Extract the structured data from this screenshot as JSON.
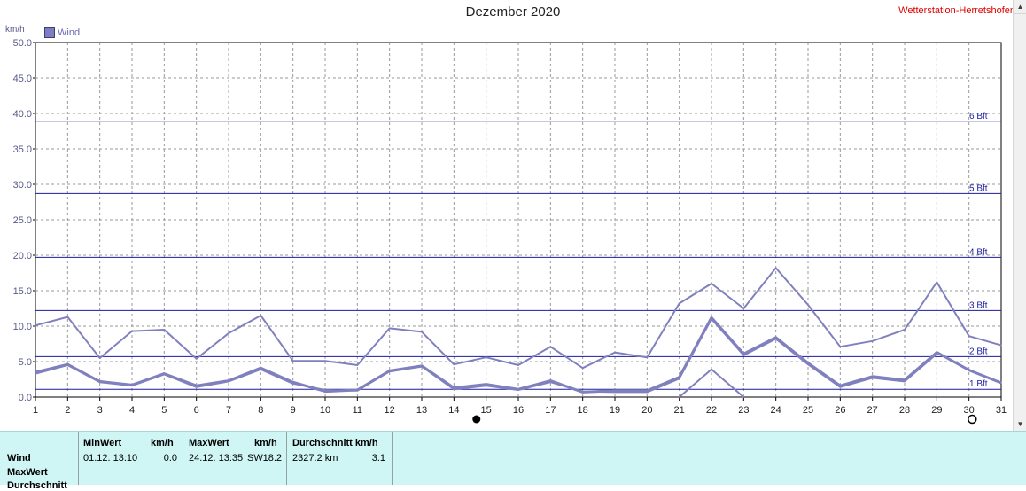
{
  "header": {
    "title": "Dezember 2020",
    "station": "Wetterstation-Herretshofen",
    "unit": "km/h"
  },
  "chart_data": {
    "type": "line",
    "title": "Dezember 2020",
    "ylabel": "km/h",
    "xlabel": "",
    "ylim": [
      0,
      50
    ],
    "xlim": [
      1,
      31
    ],
    "grid": true,
    "legend_position": "top-left",
    "x": [
      1,
      2,
      3,
      4,
      5,
      6,
      7,
      8,
      9,
      10,
      11,
      12,
      13,
      14,
      15,
      16,
      17,
      18,
      19,
      20,
      21,
      22,
      23,
      24,
      25,
      26,
      27,
      28,
      29,
      30,
      31
    ],
    "y_ticks": [
      "0.0",
      "5.0",
      "10.0",
      "15.0",
      "20.0",
      "25.0",
      "30.0",
      "35.0",
      "40.0",
      "45.0",
      "50.0"
    ],
    "x_ticks": [
      "1",
      "2",
      "3",
      "4",
      "5",
      "6",
      "7",
      "8",
      "9",
      "10",
      "11",
      "12",
      "13",
      "14",
      "15",
      "16",
      "17",
      "18",
      "19",
      "20",
      "21",
      "22",
      "23",
      "24",
      "25",
      "26",
      "27",
      "28",
      "29",
      "30",
      "31"
    ],
    "series": [
      {
        "name": "Wind",
        "role": "max",
        "color": "#8080bf",
        "values": [
          10.1,
          11.3,
          5.5,
          9.3,
          9.5,
          5.4,
          9.0,
          11.5,
          5.1,
          5.1,
          4.5,
          9.7,
          9.2,
          4.6,
          5.6,
          4.5,
          7.1,
          4.1,
          6.3,
          5.6,
          13.2,
          16.0,
          12.5,
          18.2,
          13.0,
          7.1,
          7.9,
          9.5,
          16.2,
          8.6,
          7.3
        ]
      },
      {
        "role": "avg",
        "color": "#8080bf",
        "values": [
          3.5,
          4.6,
          2.2,
          1.7,
          3.3,
          1.6,
          2.3,
          4.1,
          2.1,
          0.8,
          1.0,
          3.7,
          4.4,
          1.3,
          1.8,
          1.1,
          2.3,
          0.7,
          0.9,
          0.9,
          2.8,
          11.2,
          6.1,
          8.4,
          4.8,
          1.6,
          2.9,
          2.4,
          6.3,
          3.8,
          2.0
        ]
      },
      {
        "role": "min",
        "color": "#8080bf",
        "values": [
          3.3,
          4.5,
          2.1,
          1.6,
          3.2,
          1.4,
          2.2,
          3.9,
          1.9,
          1.0,
          0.9,
          3.6,
          4.3,
          1.1,
          1.6,
          1.0,
          2.1,
          0.8,
          0.7,
          0.7,
          2.6,
          11.0,
          5.9,
          8.2,
          4.6,
          1.4,
          2.7,
          2.2,
          6.1,
          null,
          null
        ]
      },
      {
        "role": "min-extra",
        "color": "#8080bf",
        "values": [
          null,
          null,
          null,
          null,
          null,
          null,
          null,
          null,
          null,
          null,
          null,
          null,
          null,
          null,
          null,
          null,
          null,
          null,
          null,
          null,
          0.0,
          3.9,
          0.0,
          null,
          null,
          null,
          null,
          null,
          null,
          null,
          null
        ]
      }
    ],
    "beaufort_lines": [
      {
        "label": "1 Bft",
        "value": 1.1
      },
      {
        "label": "2 Bft",
        "value": 5.7
      },
      {
        "label": "3 Bft",
        "value": 12.2
      },
      {
        "label": "4 Bft",
        "value": 19.7
      },
      {
        "label": "5 Bft",
        "value": 28.7
      },
      {
        "label": "6 Bft",
        "value": 38.9
      }
    ],
    "moon_markers": [
      {
        "day": 14.7,
        "phase": "new"
      },
      {
        "day": 30.1,
        "phase": "full"
      }
    ]
  },
  "stats": {
    "row_labels": [
      "Wind",
      "MaxWert",
      "Durchschnitt"
    ],
    "min_header": "MinWert",
    "unit_header": "km/h",
    "min_date": "01.12.  13:10",
    "min_value": "0.0",
    "max_header": "MaxWert",
    "max_date": "24.12.  13:35",
    "max_dir": "SW",
    "max_value": "18.2",
    "avg_header": "Durchschnitt km/h",
    "avg_distance": "2327.2 km",
    "avg_value": "3.1"
  },
  "colors": {
    "series": "#8080bf",
    "bft_line": "#1c1ca0",
    "grid": "#9a9a9a",
    "stats_bg": "#cff5f5",
    "station": "#e00000"
  }
}
